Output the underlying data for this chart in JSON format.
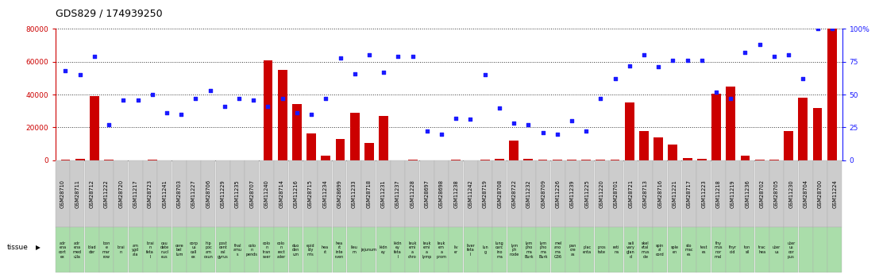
{
  "title": "GDS829 / 174939250",
  "gsm_ids": [
    "GSM28710",
    "GSM28711",
    "GSM28712",
    "GSM11222",
    "GSM28720",
    "GSM11217",
    "GSM28723",
    "GSM11241",
    "GSM28703",
    "GSM11227",
    "GSM28706",
    "GSM11229",
    "GSM11235",
    "GSM28707",
    "GSM11240",
    "GSM28714",
    "GSM11216",
    "GSM28715",
    "GSM11234",
    "GSM28699",
    "GSM11233",
    "GSM28718",
    "GSM11231",
    "GSM11237",
    "GSM11228",
    "GSM28697",
    "GSM28698",
    "GSM11238",
    "GSM11242",
    "GSM28719",
    "GSM28708",
    "GSM28722",
    "GSM11232",
    "GSM28709",
    "GSM11226",
    "GSM11239",
    "GSM11225",
    "GSM11220",
    "GSM28701",
    "GSM28721",
    "GSM28713",
    "GSM28716",
    "GSM11221",
    "GSM28717",
    "GSM11223",
    "GSM11218",
    "GSM11219",
    "GSM11236",
    "GSM28702",
    "GSM28705",
    "GSM11230",
    "GSM28704",
    "GSM28700",
    "GSM11224"
  ],
  "tissues": [
    "adr\nena\ncort\nex",
    "adr\nena\nmed\nulla",
    "blad\nder",
    "bon\ne\nmar\nrow",
    "brai\nn",
    "am\nygd\nala",
    "brai\nn\nfeta\nl",
    "cau\ndate\nnucl\neus",
    "cere\nbel\nlum",
    "corp\nus\ncall\nex",
    "hip\npoc\nam\nosun",
    "post\ncent\nral\ngyrus",
    "thal\namu\ns",
    "colo\nn\npends",
    "colo\nn\ntran\nsver",
    "colo\nn\nrect\nader",
    "duo\nden\num",
    "epid\nidy\nmis",
    "hea\nrt",
    "hea\nrt\ninte\nrven",
    "ileu\nm",
    "jejunum",
    "kidn\ney",
    "kidn\ney\nfeta\nl",
    "leuk\nemi\na\nchro",
    "leuk\nemi\na\nlymp",
    "leuk\nem\na\nprom",
    "liv\ner",
    "liver\nfeta\nl",
    "lun\ng",
    "lung\ncarc\nino\nma",
    "lym\nph\nnode",
    "lym\npho\nma\nBurk",
    "lym\npho\nma\nBurk",
    "mel\nano\nma\nG36",
    "pan\ncre\nas",
    "plac\nenta",
    "pros\ntate",
    "reti\nna",
    "sali\nvary\nglan\nd",
    "skel\netal\nmus\ncle",
    "spin\nal\ncord",
    "sple\nen",
    "sto\nmac\nes",
    "test\nes",
    "thy\nmus\nnor\nmal",
    "thyr\noid",
    "ton\nsil",
    "trac\nhea",
    "uter\nus",
    "uter\nus\ncor\npus"
  ],
  "counts": [
    500,
    800,
    39000,
    200,
    100,
    0,
    300,
    0,
    0,
    0,
    0,
    0,
    0,
    0,
    61000,
    55000,
    34000,
    16500,
    3000,
    13000,
    29000,
    10500,
    27000,
    0,
    200,
    0,
    0,
    200,
    0,
    500,
    1000,
    12000,
    1000,
    300,
    300,
    200,
    300,
    300,
    200,
    35000,
    18000,
    14000,
    9500,
    1500,
    1000,
    40500,
    45000,
    3000,
    300,
    200,
    18000,
    38000,
    32000,
    80000
  ],
  "percentile_ranks": [
    68,
    65,
    79,
    27,
    46,
    46,
    50,
    36,
    35,
    47,
    53,
    41,
    47,
    46,
    41,
    47,
    36,
    35,
    47,
    78,
    66,
    80,
    67,
    79,
    79,
    22,
    20,
    32,
    31,
    65,
    40,
    28,
    27,
    21,
    20,
    30,
    22,
    47,
    62,
    72,
    80,
    71,
    76,
    76,
    76,
    52,
    47,
    82,
    88,
    79,
    80,
    62,
    100,
    100
  ],
  "ylim_left": [
    0,
    80000
  ],
  "ylim_right": [
    0,
    100
  ],
  "yticks_left": [
    0,
    20000,
    40000,
    60000,
    80000
  ],
  "yticks_right": [
    0,
    25,
    50,
    75,
    100
  ],
  "bar_color": "#cc0000",
  "scatter_color": "#1a1aff",
  "background_color": "#ffffff",
  "title_color": "#000000",
  "gsm_box_color": "#cccccc",
  "tissue_box_color": "#aaddaa",
  "ylabel_left_color": "#cc0000",
  "ylabel_right_color": "#1a1aff",
  "legend_bar_color": "#cc0000",
  "legend_scatter_color": "#1a1aff"
}
